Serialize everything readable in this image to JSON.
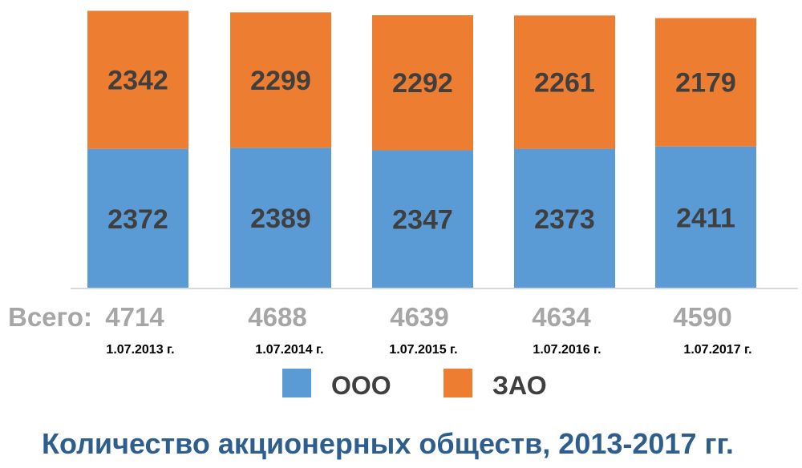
{
  "chart_data": {
    "type": "bar",
    "stacked": true,
    "categories": [
      "1.07.2013 г.",
      "1.07.2014 г.",
      "1.07.2015 г.",
      "1.07.2016 г.",
      "1.07.2017 г."
    ],
    "series": [
      {
        "name": "ООО",
        "values": [
          2372,
          2389,
          2347,
          2373,
          2411
        ],
        "color": "#5b9bd5"
      },
      {
        "name": "ЗАО",
        "values": [
          2342,
          2299,
          2292,
          2261,
          2179
        ],
        "color": "#ed7d31"
      }
    ],
    "totals_label": "Всего:",
    "totals": [
      4714,
      4688,
      4639,
      4634,
      4590
    ],
    "title": "Количество акционерных обществ, 2013-2017 гг.",
    "legend_position": "bottom",
    "grid": false,
    "ylim": [
      0,
      4775
    ]
  }
}
